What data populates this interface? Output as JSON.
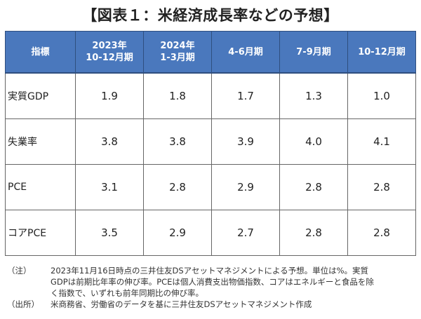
{
  "title": "【図表１：米経済成長率などの予想】",
  "table": {
    "header": {
      "indicator": "指標",
      "periods": [
        {
          "line1": "2023年",
          "line2": "10-12月期"
        },
        {
          "line1": "2024年",
          "line2": "1-3月期"
        },
        {
          "line1": "4-6月期",
          "line2": ""
        },
        {
          "line1": "7-9月期",
          "line2": ""
        },
        {
          "line1": "10-12月期",
          "line2": ""
        }
      ]
    },
    "rows": [
      {
        "label": "実質GDP",
        "values": [
          "1.9",
          "1.8",
          "1.7",
          "1.3",
          "1.0"
        ]
      },
      {
        "label": "失業率",
        "values": [
          "3.8",
          "3.8",
          "3.9",
          "4.0",
          "4.1"
        ]
      },
      {
        "label": "PCE",
        "values": [
          "3.1",
          "2.8",
          "2.9",
          "2.8",
          "2.8"
        ]
      },
      {
        "label": "コアPCE",
        "values": [
          "3.5",
          "2.9",
          "2.7",
          "2.8",
          "2.8"
        ]
      }
    ]
  },
  "notes": {
    "note_tag": "（注）",
    "note_lines": [
      "2023年11月16日時点の三井住友DSアセットマネジメントによる予想。単位は%。実質",
      "GDPは前期比年率の伸び率。PCEは個人消費支出物価指数、コアはエネルギーと食品を除",
      "く指数で、いずれも前年同期比の伸び率。"
    ],
    "source_tag": "（出所）",
    "source_text": "米商務省、労働省のデータを基に三井住友DSアセットマネジメント作成"
  },
  "colors": {
    "header_bg": "#4a78bd",
    "header_text": "#ffffff",
    "grid_line": "#666666"
  }
}
